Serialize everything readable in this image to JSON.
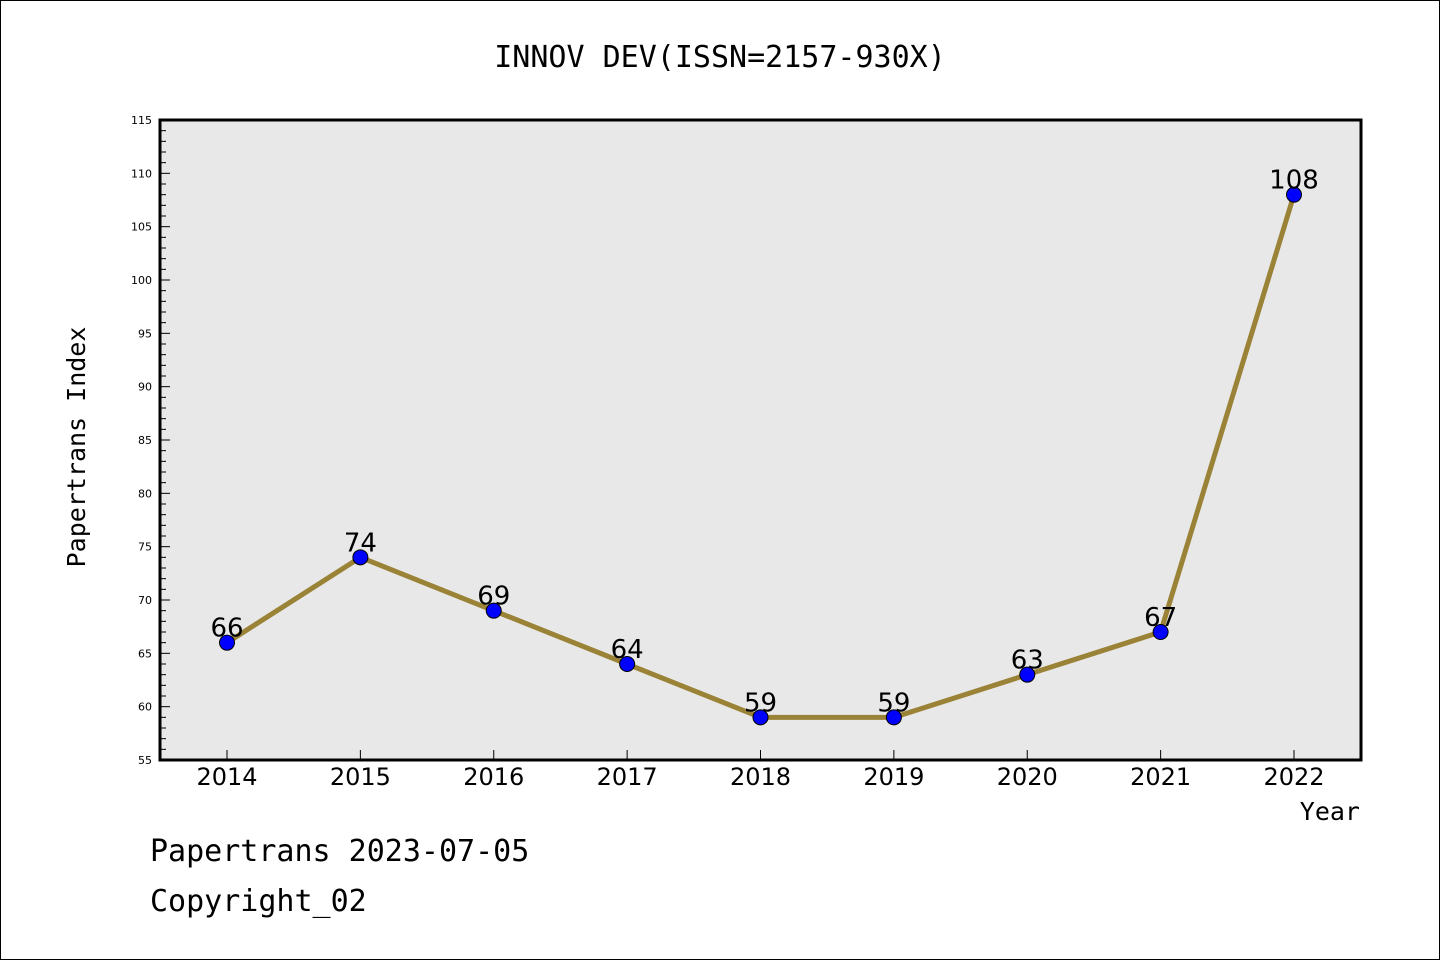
{
  "chart_data": {
    "type": "line",
    "title": "INNOV DEV(ISSN=2157-930X)",
    "xlabel": "Year",
    "ylabel": "Papertrans Index",
    "categories": [
      "2014",
      "2015",
      "2016",
      "2017",
      "2018",
      "2019",
      "2020",
      "2021",
      "2022"
    ],
    "series": [
      {
        "values": [
          66,
          74,
          69,
          64,
          59,
          59,
          63,
          67,
          108
        ]
      }
    ],
    "ylim": [
      55,
      115
    ],
    "yticks": [
      55,
      60,
      65,
      70,
      75,
      80,
      85,
      90,
      95,
      100,
      105,
      110,
      115
    ],
    "grid": false,
    "line_color": "#9a8236",
    "marker_color": "#0000ff",
    "plot_background": "#e8e8e8"
  },
  "footer": {
    "line1": "Papertrans 2023-07-05",
    "line2": "Copyright_02"
  }
}
